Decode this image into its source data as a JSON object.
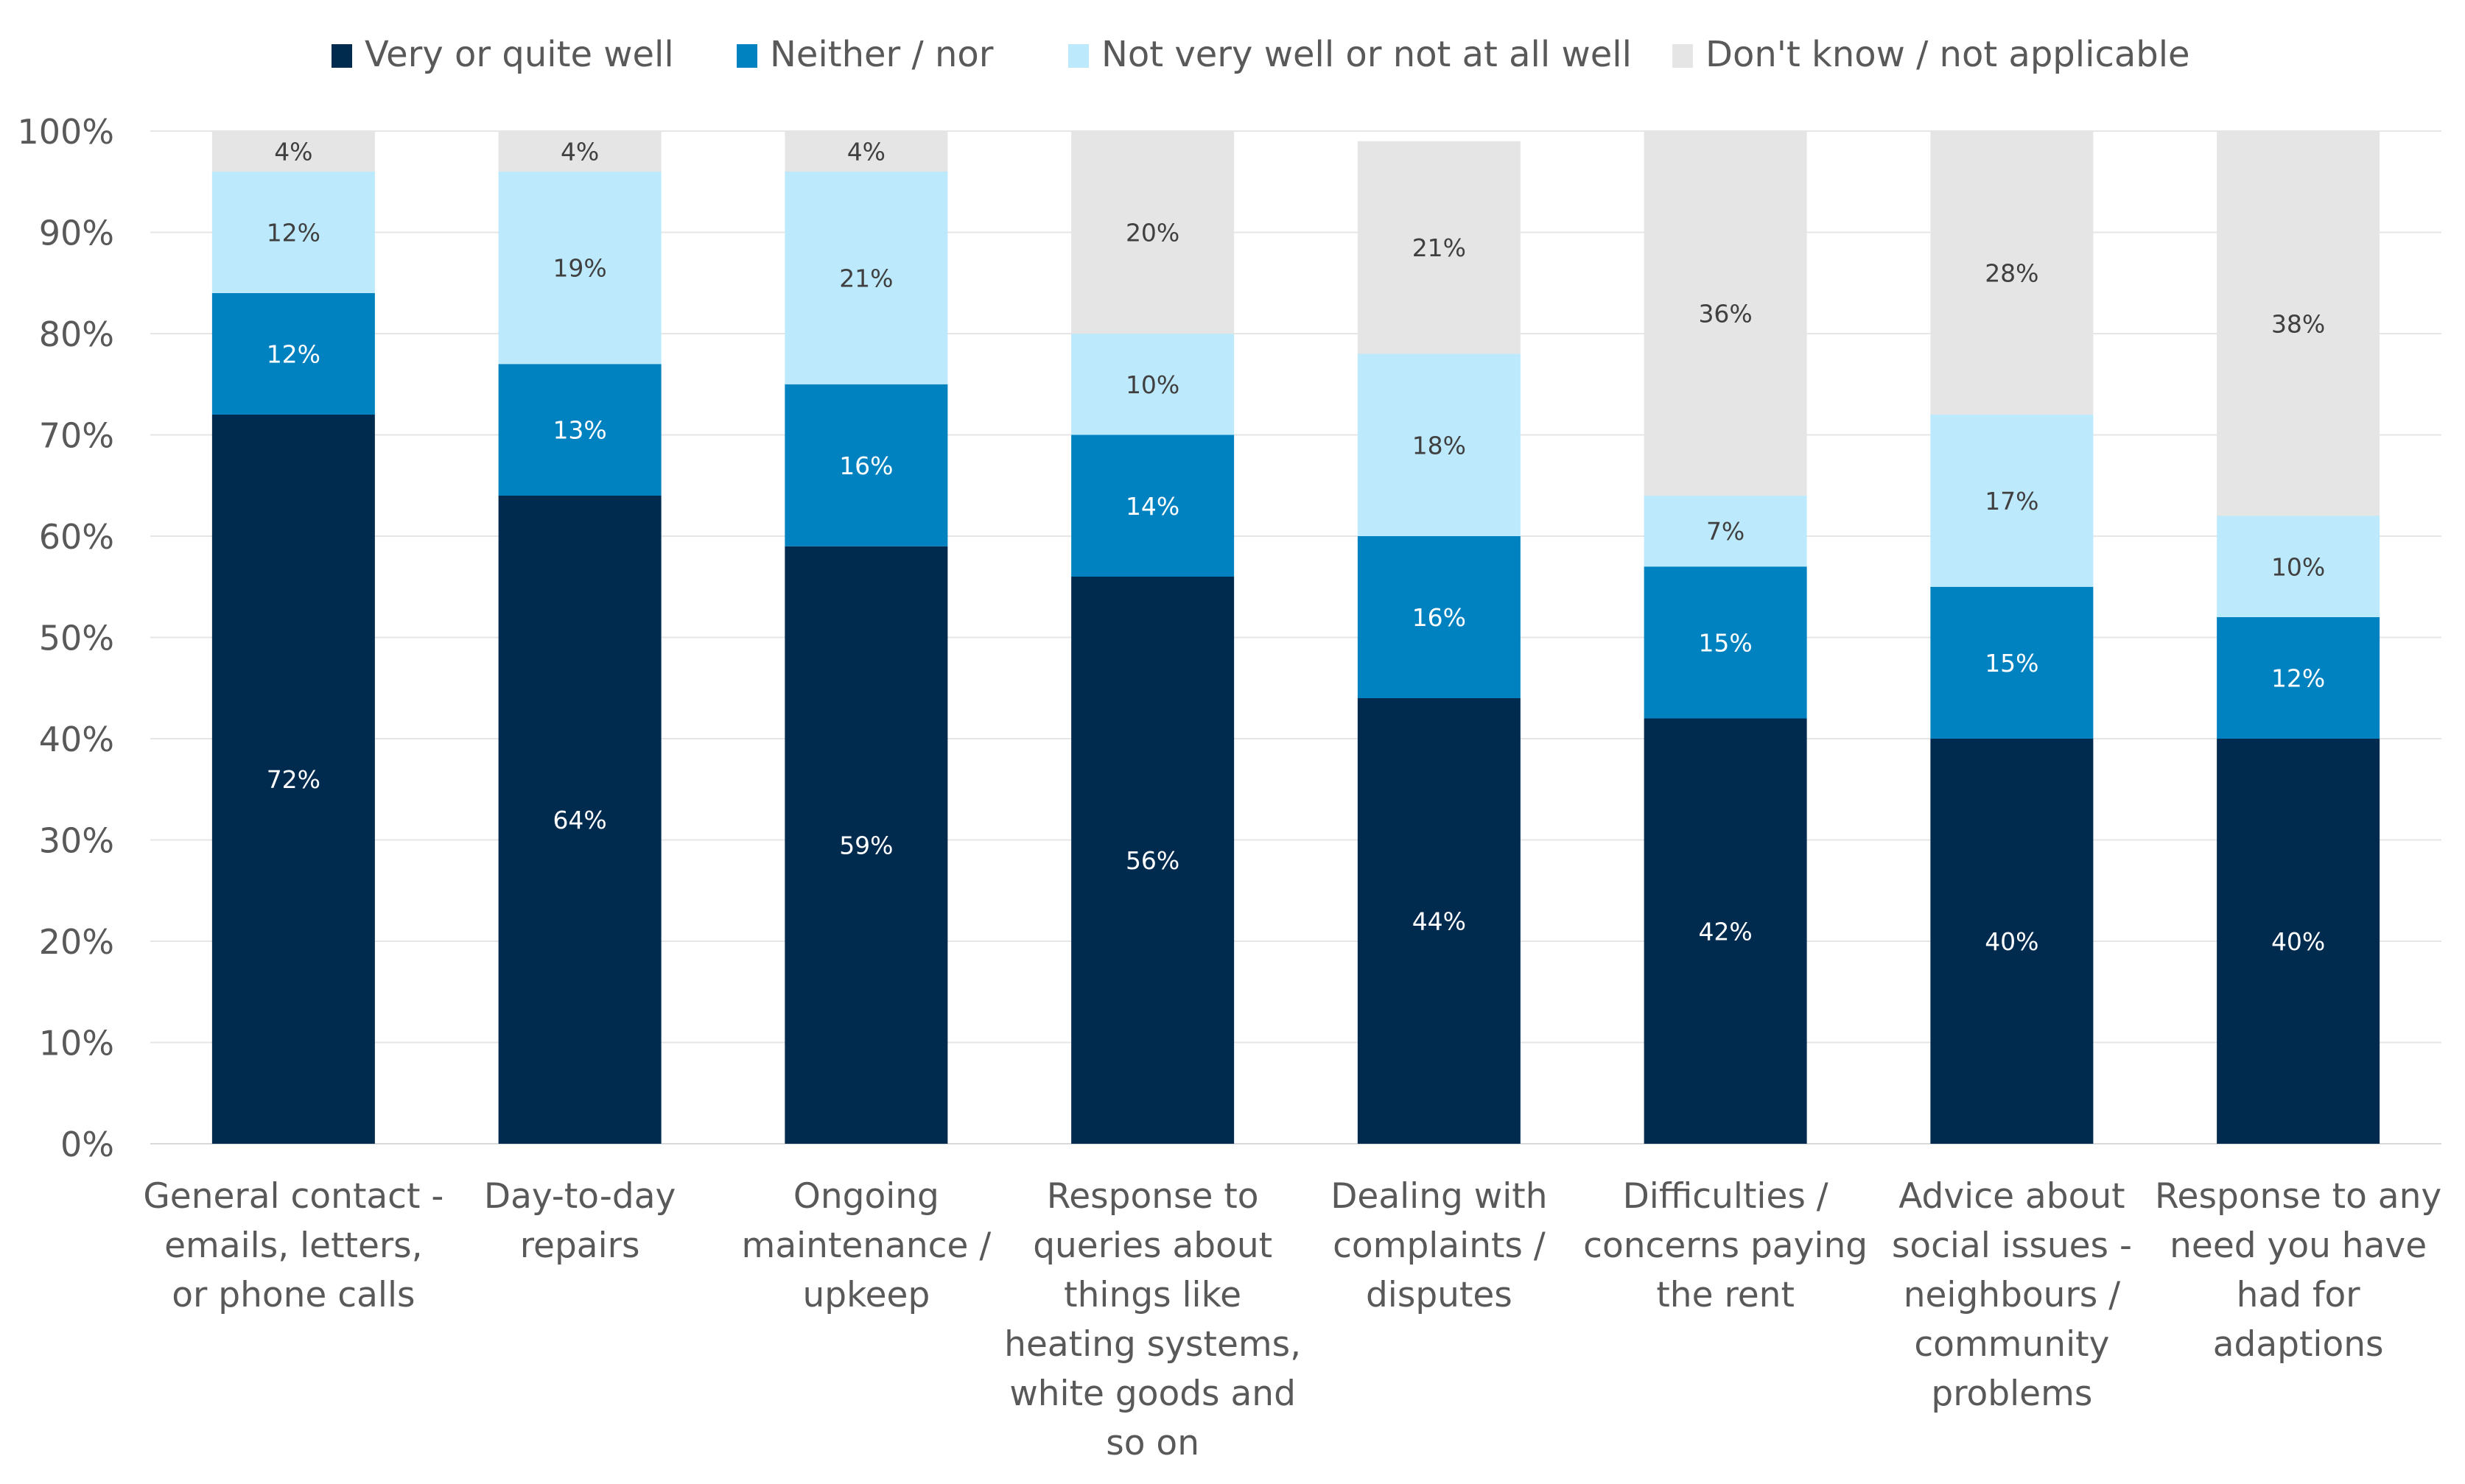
{
  "chart_data": {
    "type": "bar",
    "stacked": true,
    "title": "",
    "xlabel": "",
    "ylabel": "",
    "ylim": [
      0,
      100
    ],
    "y_ticks": [
      "0%",
      "10%",
      "20%",
      "30%",
      "40%",
      "50%",
      "60%",
      "70%",
      "80%",
      "90%",
      "100%"
    ],
    "grid": true,
    "legend_position": "top",
    "categories": [
      [
        "General contact -",
        "emails, letters,",
        "or phone calls"
      ],
      [
        "Day-to-day",
        "repairs"
      ],
      [
        "Ongoing",
        "maintenance /",
        "upkeep"
      ],
      [
        "Response to",
        "queries about",
        "things like",
        "heating systems,",
        "white goods and",
        "so on"
      ],
      [
        "Dealing with",
        "complaints /",
        "disputes"
      ],
      [
        "Difficulties /",
        "concerns paying",
        "the rent"
      ],
      [
        "Advice about",
        "social issues -",
        "neighbours /",
        "community",
        "problems"
      ],
      [
        "Response to any",
        "need you have",
        "had for",
        "adaptions"
      ]
    ],
    "series": [
      {
        "name": "Very or quite well",
        "color": "#002b4f",
        "label_color": "#ffffff",
        "values": [
          72,
          64,
          59,
          56,
          44,
          42,
          40,
          40
        ]
      },
      {
        "name": "Neither / nor",
        "color": "#0082c0",
        "label_color": "#ffffff",
        "values": [
          12,
          13,
          16,
          14,
          16,
          15,
          15,
          12
        ]
      },
      {
        "name": "Not very well or not at all well",
        "color": "#bde9fc",
        "label_color": "#404040",
        "values": [
          12,
          19,
          21,
          10,
          18,
          7,
          17,
          10
        ]
      },
      {
        "name": "Don't know / not applicable",
        "color": "#e5e5e5",
        "label_color": "#404040",
        "values": [
          4,
          4,
          4,
          20,
          21,
          36,
          28,
          38
        ]
      }
    ]
  }
}
